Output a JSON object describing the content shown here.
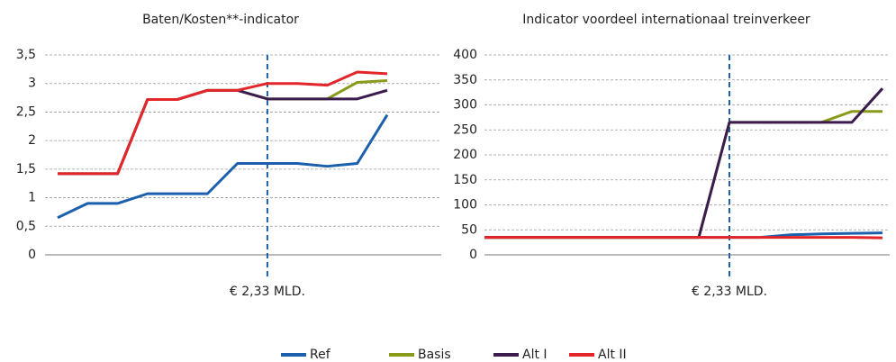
{
  "chart_data": [
    {
      "type": "line",
      "title": "Baten/Kosten**-indicator",
      "annotation": "€ 2,33 MLD.",
      "categories": [
        null,
        null,
        null,
        null,
        null,
        null,
        null,
        null,
        null,
        null,
        null,
        null
      ],
      "ylim": [
        0,
        3.5
      ],
      "yticks": [
        0,
        {
          "value": 0.5,
          "label": "0,5"
        },
        1,
        {
          "value": 1.5,
          "label": "1,5"
        },
        2,
        {
          "value": 2.5,
          "label": "2,5"
        },
        3,
        {
          "value": 3.5,
          "label": "3,5"
        }
      ],
      "grid": true,
      "series": [
        {
          "name": "Ref",
          "color": "#1b5fad",
          "values": [
            0.65,
            0.9,
            0.9,
            1.07,
            1.07,
            1.07,
            1.6,
            1.6,
            1.6,
            1.55,
            1.6,
            2.45
          ]
        },
        {
          "name": "Basis",
          "color": "#8a9a1b",
          "values": [
            1.42,
            1.42,
            1.42,
            2.72,
            2.72,
            2.88,
            2.88,
            2.73,
            2.73,
            2.73,
            3.02,
            3.05
          ]
        },
        {
          "name": "Alt I",
          "color": "#3b1c4e",
          "values": [
            1.42,
            1.42,
            1.42,
            2.72,
            2.72,
            2.88,
            2.88,
            2.73,
            2.73,
            2.73,
            2.73,
            2.88
          ]
        },
        {
          "name": "Alt II",
          "color": "#e4262b",
          "values": [
            1.42,
            1.42,
            1.42,
            2.72,
            2.72,
            2.88,
            2.88,
            3.0,
            3.0,
            2.97,
            3.2,
            3.17
          ]
        }
      ]
    },
    {
      "type": "line",
      "title": "Indicator voordeel internationaal treinverkeer",
      "annotation": "€ 2,33 MLD.",
      "categories": [
        null,
        null,
        null,
        null,
        null,
        null,
        null,
        null,
        null,
        null,
        null,
        null,
        null,
        null
      ],
      "ylim": [
        0,
        400
      ],
      "yticks": [
        0,
        50,
        100,
        150,
        200,
        250,
        300,
        350,
        400
      ],
      "grid": true,
      "series": [
        {
          "name": "Ref",
          "color": "#1b5fad",
          "values": [
            35,
            35,
            35,
            35,
            35,
            35,
            35,
            35,
            35,
            35,
            40,
            42,
            43,
            44
          ]
        },
        {
          "name": "Basis",
          "color": "#8a9a1b",
          "values": [
            35,
            35,
            35,
            35,
            35,
            35,
            35,
            35,
            265,
            265,
            265,
            265,
            287,
            287
          ]
        },
        {
          "name": "Alt I",
          "color": "#3b1c4e",
          "values": [
            35,
            35,
            35,
            35,
            35,
            35,
            35,
            35,
            265,
            265,
            265,
            265,
            265,
            333
          ]
        },
        {
          "name": "Alt II",
          "color": "#e4262b",
          "values": [
            35,
            35,
            35,
            35,
            35,
            35,
            35,
            35,
            35,
            35,
            35,
            35,
            35,
            34
          ]
        }
      ]
    }
  ]
}
